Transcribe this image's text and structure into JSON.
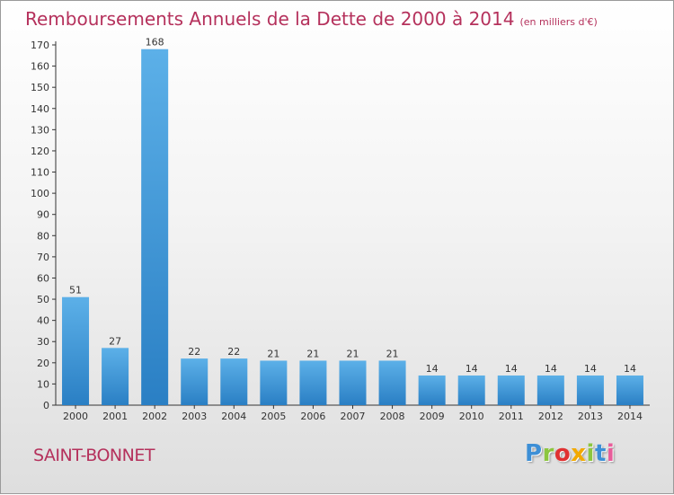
{
  "title": {
    "main": "Remboursements Annuels de la Dette de 2000 à 2014",
    "unit": "(en milliers d'€)"
  },
  "commune": "SAINT-BONNET",
  "brand": {
    "letters": [
      "P",
      "r",
      "o",
      "x",
      "i",
      "t",
      "i"
    ]
  },
  "colors": {
    "bar_light": "#5cb0e8",
    "bar_dark": "#2a7fc4",
    "title": "#b5315c",
    "axis": "#333333"
  },
  "chart_data": {
    "type": "bar",
    "title": "Remboursements Annuels de la Dette de 2000 à 2014",
    "subtitle": "(en milliers d'€)",
    "categories": [
      "2000",
      "2001",
      "2002",
      "2003",
      "2004",
      "2005",
      "2006",
      "2007",
      "2008",
      "2009",
      "2010",
      "2011",
      "2012",
      "2013",
      "2014"
    ],
    "values": [
      51,
      27,
      168,
      22,
      22,
      21,
      21,
      21,
      21,
      14,
      14,
      14,
      14,
      14,
      14
    ],
    "xlabel": "",
    "ylabel": "",
    "ylim": [
      0,
      170
    ],
    "yticks": [
      0,
      10,
      20,
      30,
      40,
      50,
      60,
      70,
      80,
      90,
      100,
      110,
      120,
      130,
      140,
      150,
      160,
      170
    ],
    "grid": false,
    "data_labels": true
  }
}
